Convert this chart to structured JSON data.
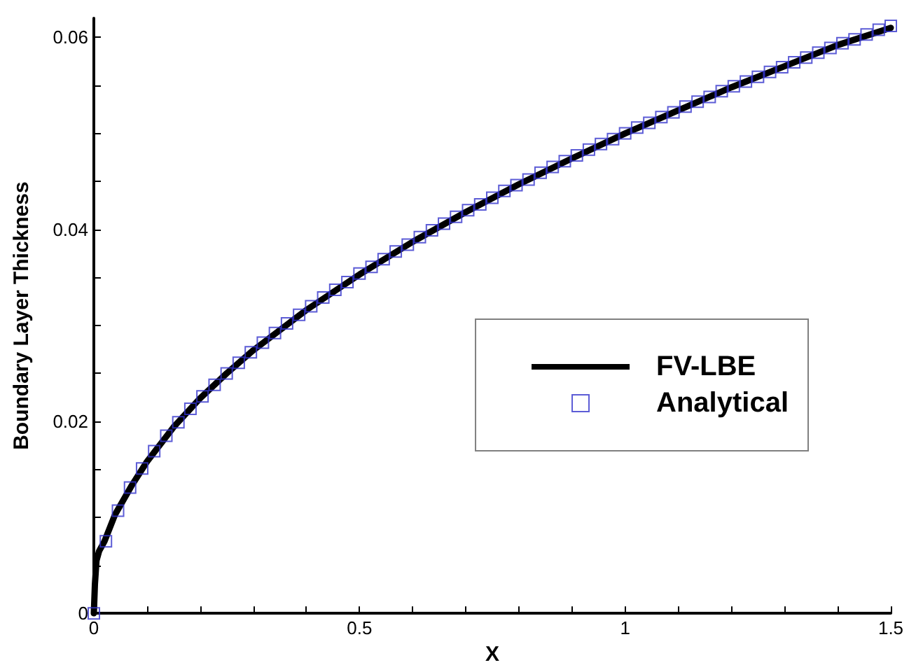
{
  "chart_data": {
    "type": "line",
    "xlabel": "X",
    "ylabel": "Boundary Layer Thickness",
    "xlim": [
      0,
      1.5
    ],
    "ylim": [
      0,
      0.062
    ],
    "xticks": [
      0,
      {
        "value": 0.1,
        "label": null
      },
      {
        "value": 0.2,
        "label": null
      },
      {
        "value": 0.3,
        "label": null
      },
      {
        "value": 0.4,
        "label": null
      },
      0.5,
      {
        "value": 0.6,
        "label": null
      },
      {
        "value": 0.7,
        "label": null
      },
      {
        "value": 0.8,
        "label": null
      },
      {
        "value": 0.9,
        "label": null
      },
      1,
      {
        "value": 1.1,
        "label": null
      },
      {
        "value": 1.2,
        "label": null
      },
      {
        "value": 1.3,
        "label": null
      },
      {
        "value": 1.4,
        "label": null
      },
      1.5
    ],
    "yticks": [
      0,
      {
        "value": 0.005,
        "label": null
      },
      {
        "value": 0.01,
        "label": null
      },
      {
        "value": 0.015,
        "label": null
      },
      0.02,
      {
        "value": 0.025,
        "label": null
      },
      {
        "value": 0.03,
        "label": null
      },
      {
        "value": 0.035,
        "label": null
      },
      0.04,
      {
        "value": 0.045,
        "label": null
      },
      {
        "value": 0.05,
        "label": null
      },
      {
        "value": 0.055,
        "label": null
      },
      0.06
    ],
    "grid": false,
    "legend": "right",
    "series": [
      {
        "name": "FV-LBE",
        "color": "#000000",
        "marker": "none",
        "line_style": "solid",
        "x": [
          0,
          0.002,
          0.005,
          0.01,
          0.02,
          0.04,
          0.07,
          0.1,
          0.15,
          0.2,
          0.25,
          0.3,
          0.4,
          0.5,
          0.6,
          0.7,
          0.8,
          0.9,
          1.0,
          1.1,
          1.2,
          1.3,
          1.4,
          1.5
        ],
        "values": [
          0,
          0.003,
          0.0055,
          0.0065,
          0.0075,
          0.0103,
          0.0132,
          0.0158,
          0.0194,
          0.0224,
          0.025,
          0.0274,
          0.0316,
          0.0353,
          0.0387,
          0.0418,
          0.0447,
          0.0474,
          0.05,
          0.0524,
          0.0548,
          0.057,
          0.0592,
          0.061
        ]
      },
      {
        "name": "Analytical",
        "type": "scatter",
        "color": "#3333cc",
        "marker": "square",
        "x": [
          0,
          0.0227,
          0.0455,
          0.0682,
          0.0909,
          0.1136,
          0.1364,
          0.1591,
          0.1818,
          0.2045,
          0.2273,
          0.25,
          0.2727,
          0.2955,
          0.3182,
          0.3409,
          0.3636,
          0.3864,
          0.4091,
          0.4318,
          0.4545,
          0.4773,
          0.5,
          0.5227,
          0.5455,
          0.5682,
          0.5909,
          0.6136,
          0.6364,
          0.6591,
          0.6818,
          0.7045,
          0.7273,
          0.75,
          0.7727,
          0.7955,
          0.8182,
          0.8409,
          0.8636,
          0.8864,
          0.9091,
          0.9318,
          0.9545,
          0.9773,
          1.0,
          1.0227,
          1.0455,
          1.0682,
          1.0909,
          1.1136,
          1.1364,
          1.1591,
          1.1818,
          1.2045,
          1.2273,
          1.25,
          1.2727,
          1.2955,
          1.3182,
          1.3409,
          1.3636,
          1.3864,
          1.4091,
          1.4318,
          1.4545,
          1.4773,
          1.5
        ],
        "values": [
          0,
          0.0075,
          0.0107,
          0.0131,
          0.0151,
          0.0169,
          0.0185,
          0.0199,
          0.0213,
          0.0226,
          0.0238,
          0.025,
          0.0261,
          0.0272,
          0.0282,
          0.0292,
          0.0302,
          0.0311,
          0.032,
          0.0329,
          0.0337,
          0.0345,
          0.0354,
          0.0361,
          0.0369,
          0.0377,
          0.0384,
          0.0392,
          0.0399,
          0.0406,
          0.0413,
          0.042,
          0.0426,
          0.0433,
          0.044,
          0.0446,
          0.0452,
          0.0459,
          0.0465,
          0.0471,
          0.0477,
          0.0483,
          0.0489,
          0.0494,
          0.05,
          0.0506,
          0.0511,
          0.0517,
          0.0522,
          0.0528,
          0.0533,
          0.0538,
          0.0544,
          0.0549,
          0.0554,
          0.0559,
          0.0564,
          0.0569,
          0.0574,
          0.0579,
          0.0584,
          0.0589,
          0.0594,
          0.0598,
          0.0603,
          0.0608,
          0.0612
        ]
      }
    ]
  }
}
